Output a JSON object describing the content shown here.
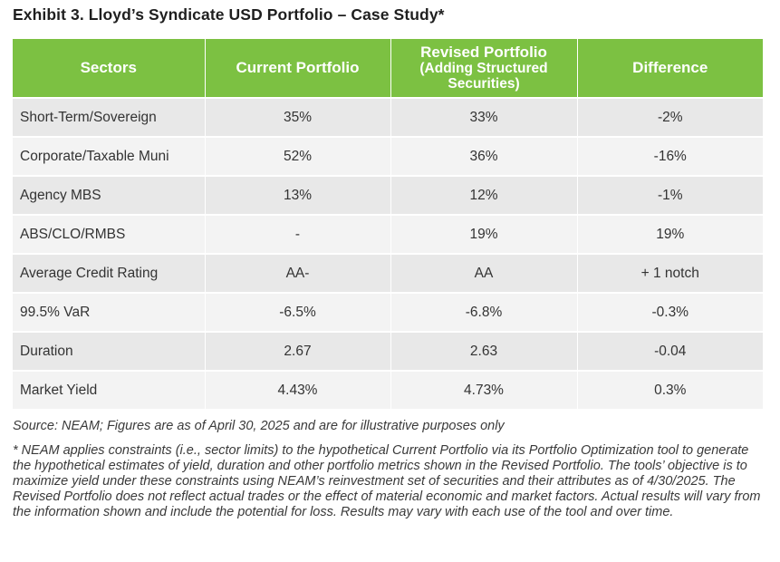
{
  "title": "Exhibit 3. Lloyd’s Syndicate USD Portfolio – Case Study*",
  "table": {
    "headers": {
      "sectors": "Sectors",
      "current": "Current Portfolio",
      "revised_main": "Revised Portfolio",
      "revised_sub": "(Adding Structured Securities)",
      "difference": "Difference"
    },
    "rows": [
      {
        "sector": "Short-Term/Sovereign",
        "current": "35%",
        "revised": "33%",
        "difference": "-2%"
      },
      {
        "sector": "Corporate/Taxable Muni",
        "current": "52%",
        "revised": "36%",
        "difference": "-16%"
      },
      {
        "sector": "Agency MBS",
        "current": "13%",
        "revised": "12%",
        "difference": "-1%"
      },
      {
        "sector": "ABS/CLO/RMBS",
        "current": "-",
        "revised": "19%",
        "difference": "19%"
      },
      {
        "sector": "Average Credit Rating",
        "current": "AA-",
        "revised": "AA",
        "difference": "+ 1 notch"
      },
      {
        "sector": "99.5% VaR",
        "current": "-6.5%",
        "revised": "-6.8%",
        "difference": "-0.3%"
      },
      {
        "sector": "Duration",
        "current": "2.67",
        "revised": "2.63",
        "difference": "-0.04"
      },
      {
        "sector": "Market Yield",
        "current": "4.43%",
        "revised": "4.73%",
        "difference": "0.3%"
      }
    ]
  },
  "notes": {
    "source": "Source: NEAM; Figures are as of April 30, 2025 and are for illustrative purposes only",
    "disclaimer": "* NEAM applies constraints (i.e., sector limits) to the hypothetical Current Portfolio via its Portfolio Optimization tool to generate the hypothetical estimates of yield, duration and other portfolio metrics shown in the Revised Portfolio. The tools’ objective is to maximize yield under these constraints using NEAM’s reinvestment set of securities and their attributes as of 4/30/2025. The Revised Portfolio does not reflect actual trades or the effect of material economic and market factors. Actual results will vary from the information shown and include the potential for loss. Results may vary with each use of the tool and over time."
  },
  "colors": {
    "header_bg": "#7cc142",
    "row_odd": "#e8e8e8",
    "row_even": "#f3f3f3"
  }
}
